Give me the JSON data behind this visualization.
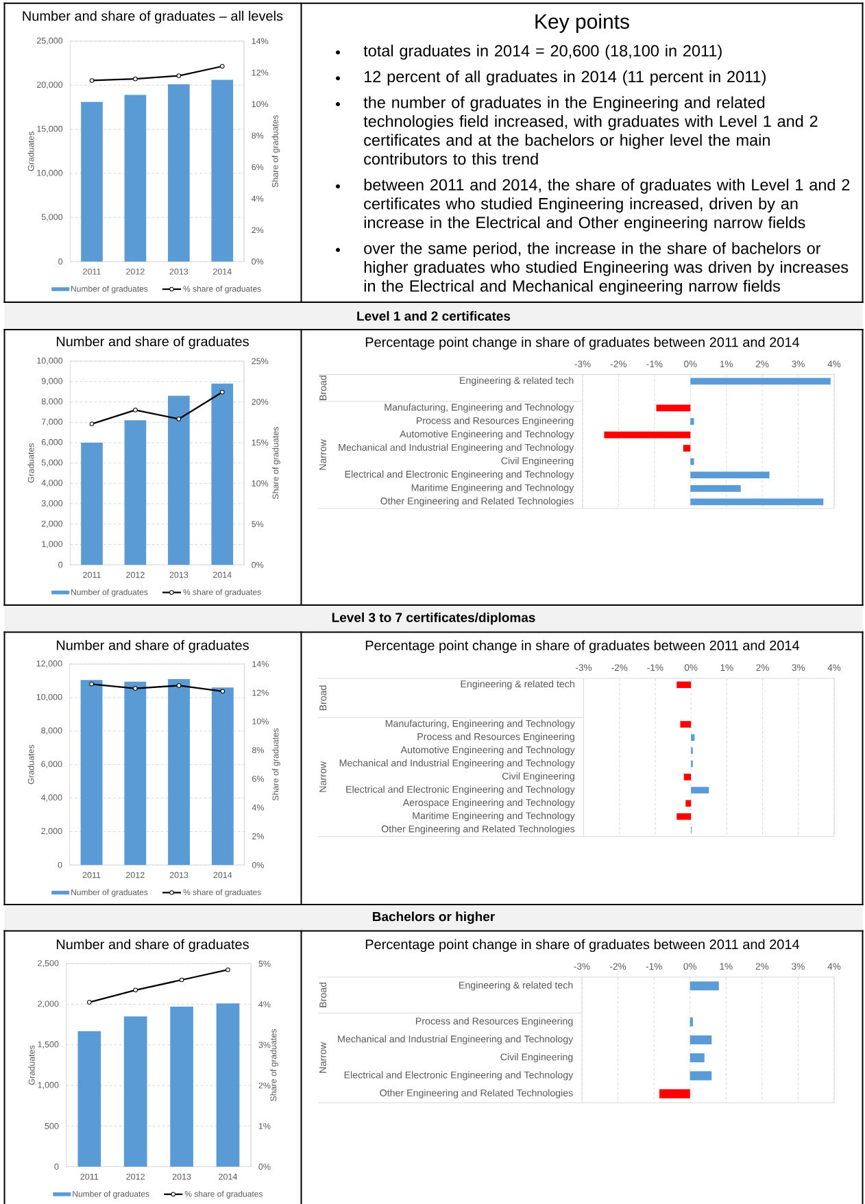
{
  "chart_data": [
    {
      "type": "bar",
      "title": "Number and share of graduates – all levels",
      "categories": [
        "2011",
        "2012",
        "2013",
        "2014"
      ],
      "series": [
        {
          "name": "Number of graduates",
          "type": "bar",
          "color": "#5b9bd5",
          "values": [
            18100,
            18900,
            20100,
            20600
          ]
        },
        {
          "name": "% share of graduates",
          "type": "line",
          "axis": "y2",
          "color": "#000000",
          "marker": "circle",
          "values": [
            11.5,
            11.6,
            11.8,
            12.4
          ]
        }
      ],
      "ylabel": "Graduates",
      "y2label": "Share of graduates",
      "ylim": [
        0,
        25000
      ],
      "yticks": [
        0,
        {
          "value": 5000,
          "label": "5,000"
        },
        {
          "value": 10000,
          "label": "10,000"
        },
        {
          "value": 15000,
          "label": "15,000"
        },
        {
          "value": 20000,
          "label": "20,000"
        },
        {
          "value": 25000,
          "label": "25,000"
        }
      ],
      "y2lim": [
        0,
        14
      ],
      "y2ticks": [
        {
          "value": 0,
          "label": "0%"
        },
        {
          "value": 2,
          "label": "2%"
        },
        {
          "value": 4,
          "label": "4%"
        },
        {
          "value": 6,
          "label": "6%"
        },
        {
          "value": 8,
          "label": "8%"
        },
        {
          "value": 10,
          "label": "10%"
        },
        {
          "value": 12,
          "label": "12%"
        },
        {
          "value": 14,
          "label": "14%"
        }
      ],
      "grid": "y",
      "legend": "bottom"
    },
    {
      "type": "other",
      "title": "Key points",
      "annotations": [
        "total graduates in 2014 = 20,600 (18,100 in 2011)",
        "12 percent of all graduates in 2014 (11 percent in 2011)",
        "the number of graduates in the Engineering and related technologies field increased, with graduates with Level 1 and 2 certificates and at the bachelors or higher level the main contributors to this trend",
        "between 2011 and 2014, the share of graduates with Level 1 and 2 certificates who studied Engineering increased, driven by an increase in the Electrical and Other engineering narrow fields",
        "over the same period, the increase in the share of bachelors or higher graduates who studied Engineering was driven by increases in the Electrical and Mechanical engineering narrow fields"
      ]
    },
    {
      "type": "other",
      "title": "Level 1 and 2 certificates"
    },
    {
      "type": "bar",
      "title": "Number and share of graduates",
      "categories": [
        "2011",
        "2012",
        "2013",
        "2014"
      ],
      "series": [
        {
          "name": "Number of graduates",
          "type": "bar",
          "color": "#5b9bd5",
          "values": [
            6000,
            7100,
            8300,
            8900
          ]
        },
        {
          "name": "% share of graduates",
          "type": "line",
          "axis": "y2",
          "color": "#000000",
          "marker": "circle",
          "values": [
            17.3,
            19.0,
            17.9,
            21.2
          ]
        }
      ],
      "ylabel": "Graduates",
      "y2label": "Share of graduates",
      "ylim": [
        0,
        10000
      ],
      "yticks": [
        0,
        {
          "value": 1000,
          "label": "1,000"
        },
        {
          "value": 2000,
          "label": "2,000"
        },
        {
          "value": 3000,
          "label": "3,000"
        },
        {
          "value": 4000,
          "label": "4,000"
        },
        {
          "value": 5000,
          "label": "5,000"
        },
        {
          "value": 6000,
          "label": "6,000"
        },
        {
          "value": 7000,
          "label": "7,000"
        },
        {
          "value": 8000,
          "label": "8,000"
        },
        {
          "value": 9000,
          "label": "9,000"
        },
        {
          "value": 10000,
          "label": "10,000"
        }
      ],
      "y2lim": [
        0,
        25
      ],
      "y2ticks": [
        {
          "value": 0,
          "label": "0%"
        },
        {
          "value": 5,
          "label": "5%"
        },
        {
          "value": 10,
          "label": "10%"
        },
        {
          "value": 15,
          "label": "15%"
        },
        {
          "value": 20,
          "label": "20%"
        },
        {
          "value": 25,
          "label": "25%"
        }
      ],
      "grid": "y",
      "legend": "bottom"
    },
    {
      "type": "bar",
      "orientation": "horizontal",
      "title": "Percentage point change in share of graduates between 2011 and 2014",
      "categories": [
        "Engineering & related tech",
        null,
        "Manufacturing, Engineering and Technology",
        "Process and Resources Engineering",
        "Automotive Engineering and Technology",
        "Mechanical and Industrial Engineering and Technology",
        "Civil Engineering",
        "Electrical and Electronic Engineering and Technology",
        "Maritime Engineering and Technology",
        "Other Engineering and Related Technologies"
      ],
      "values": [
        3.9,
        null,
        -0.95,
        0.1,
        -2.4,
        -0.2,
        0.1,
        2.2,
        1.4,
        3.7
      ],
      "colors": [
        "#5b9bd5",
        null,
        "#ff0000",
        "#5b9bd5",
        "#ff0000",
        "#ff0000",
        "#5b9bd5",
        "#5b9bd5",
        "#5b9bd5",
        "#5b9bd5"
      ],
      "xlim": [
        -3,
        4
      ],
      "xticks": [
        {
          "value": -3,
          "label": "-3%"
        },
        {
          "value": -2,
          "label": "-2%"
        },
        {
          "value": -1,
          "label": "-1%"
        },
        {
          "value": 0,
          "label": "0%"
        },
        {
          "value": 1,
          "label": "1%"
        },
        {
          "value": 2,
          "label": "2%"
        },
        {
          "value": 3,
          "label": "3%"
        },
        {
          "value": 4,
          "label": "4%"
        }
      ],
      "grid": "x",
      "annotations": [
        "Broad",
        "Narrow"
      ]
    },
    {
      "type": "other",
      "title": "Level 3 to 7 certificates/diplomas"
    },
    {
      "type": "bar",
      "title": "Number and share of graduates",
      "categories": [
        "2011",
        "2012",
        "2013",
        "2014"
      ],
      "series": [
        {
          "name": "Number of graduates",
          "type": "bar",
          "color": "#5b9bd5",
          "values": [
            11050,
            10950,
            11100,
            10600
          ]
        },
        {
          "name": "% share of graduates",
          "type": "line",
          "axis": "y2",
          "color": "#000000",
          "marker": "circle",
          "values": [
            12.6,
            12.3,
            12.5,
            12.1
          ]
        }
      ],
      "ylabel": "Graduates",
      "y2label": "Share of graduates",
      "ylim": [
        0,
        12000
      ],
      "yticks": [
        0,
        {
          "value": 2000,
          "label": "2,000"
        },
        {
          "value": 4000,
          "label": "4,000"
        },
        {
          "value": 6000,
          "label": "6,000"
        },
        {
          "value": 8000,
          "label": "8,000"
        },
        {
          "value": 10000,
          "label": "10,000"
        },
        {
          "value": 12000,
          "label": "12,000"
        }
      ],
      "y2lim": [
        0,
        14
      ],
      "y2ticks": [
        {
          "value": 0,
          "label": "0%"
        },
        {
          "value": 2,
          "label": "2%"
        },
        {
          "value": 4,
          "label": "4%"
        },
        {
          "value": 6,
          "label": "6%"
        },
        {
          "value": 8,
          "label": "8%"
        },
        {
          "value": 10,
          "label": "10%"
        },
        {
          "value": 12,
          "label": "12%"
        },
        {
          "value": 14,
          "label": "14%"
        }
      ],
      "grid": "y",
      "legend": "bottom"
    },
    {
      "type": "bar",
      "orientation": "horizontal",
      "title": "Percentage point change in share of graduates between 2011 and 2014",
      "categories": [
        "Engineering & related tech",
        null,
        null,
        "Manufacturing, Engineering and Technology",
        "Process and Resources Engineering",
        "Automotive Engineering and Technology",
        "Mechanical and Industrial Engineering and Technology",
        "Civil Engineering",
        "Electrical and Electronic Engineering and Technology",
        "Aerospace Engineering and Technology",
        "Maritime Engineering and Technology",
        "Other Engineering and Related Technologies"
      ],
      "values": [
        -0.4,
        null,
        null,
        -0.3,
        0.1,
        0.05,
        0.05,
        -0.2,
        0.5,
        -0.15,
        -0.4,
        0.02
      ],
      "colors": [
        "#ff0000",
        null,
        null,
        "#ff0000",
        "#5b9bd5",
        "#5b9bd5",
        "#5b9bd5",
        "#ff0000",
        "#5b9bd5",
        "#ff0000",
        "#ff0000",
        "#5b9bd5"
      ],
      "xlim": [
        -3,
        4
      ],
      "xticks": [
        {
          "value": -3,
          "label": "-3%"
        },
        {
          "value": -2,
          "label": "-2%"
        },
        {
          "value": -1,
          "label": "-1%"
        },
        {
          "value": 0,
          "label": "0%"
        },
        {
          "value": 1,
          "label": "1%"
        },
        {
          "value": 2,
          "label": "2%"
        },
        {
          "value": 3,
          "label": "3%"
        },
        {
          "value": 4,
          "label": "4%"
        }
      ],
      "grid": "x",
      "annotations": [
        "Broad",
        "Narrow"
      ]
    },
    {
      "type": "other",
      "title": "Bachelors or higher"
    },
    {
      "type": "bar",
      "title": "Number and share of graduates",
      "categories": [
        "2011",
        "2012",
        "2013",
        "2014"
      ],
      "series": [
        {
          "name": "Number of graduates",
          "type": "bar",
          "color": "#5b9bd5",
          "values": [
            1670,
            1850,
            1970,
            2010
          ]
        },
        {
          "name": "% share of graduates",
          "type": "line",
          "axis": "y2",
          "color": "#000000",
          "marker": "circle",
          "values": [
            4.05,
            4.35,
            4.6,
            4.85
          ]
        }
      ],
      "ylabel": "Graduates",
      "y2label": "Share of graduates",
      "ylim": [
        0,
        2500
      ],
      "yticks": [
        0,
        500,
        {
          "value": 1000,
          "label": "1,000"
        },
        {
          "value": 1500,
          "label": "1,500"
        },
        {
          "value": 2000,
          "label": "2,000"
        },
        {
          "value": 2500,
          "label": "2,500"
        }
      ],
      "y2lim": [
        0,
        5
      ],
      "y2ticks": [
        {
          "value": 0,
          "label": "0%"
        },
        {
          "value": 1,
          "label": "1%"
        },
        {
          "value": 2,
          "label": "2%"
        },
        {
          "value": 3,
          "label": "3%"
        },
        {
          "value": 4,
          "label": "4%"
        },
        {
          "value": 5,
          "label": "5%"
        }
      ],
      "grid": "y",
      "legend": "bottom"
    },
    {
      "type": "bar",
      "orientation": "horizontal",
      "title": "Percentage point change in share of graduates between 2011 and 2014",
      "categories": [
        "Engineering & related tech",
        null,
        "Process and Resources Engineering",
        "Mechanical and Industrial Engineering and Technology",
        "Civil Engineering",
        "Electrical and Electronic Engineering and Technology",
        "Other Engineering and Related Technologies"
      ],
      "values": [
        0.8,
        null,
        0.08,
        0.6,
        0.4,
        0.6,
        -0.85
      ],
      "colors": [
        "#5b9bd5",
        null,
        "#5b9bd5",
        "#5b9bd5",
        "#5b9bd5",
        "#5b9bd5",
        "#ff0000"
      ],
      "xlim": [
        -3,
        4
      ],
      "xticks": [
        {
          "value": -3,
          "label": "-3%"
        },
        {
          "value": -2,
          "label": "-2%"
        },
        {
          "value": -1,
          "label": "-1%"
        },
        {
          "value": 0,
          "label": "0%"
        },
        {
          "value": 1,
          "label": "1%"
        },
        {
          "value": 2,
          "label": "2%"
        },
        {
          "value": 3,
          "label": "3%"
        },
        {
          "value": 4,
          "label": "4%"
        }
      ],
      "grid": "x",
      "annotations": [
        "Broad",
        "Narrow"
      ]
    }
  ]
}
